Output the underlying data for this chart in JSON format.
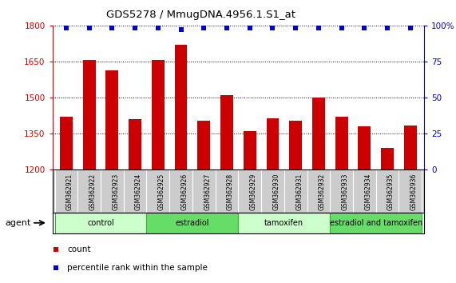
{
  "title": "GDS5278 / MmugDNA.4956.1.S1_at",
  "samples": [
    "GSM362921",
    "GSM362922",
    "GSM362923",
    "GSM362924",
    "GSM362925",
    "GSM362926",
    "GSM362927",
    "GSM362928",
    "GSM362929",
    "GSM362930",
    "GSM362931",
    "GSM362932",
    "GSM362933",
    "GSM362934",
    "GSM362935",
    "GSM362936"
  ],
  "counts": [
    1420,
    1655,
    1615,
    1410,
    1655,
    1720,
    1405,
    1510,
    1360,
    1415,
    1405,
    1500,
    1420,
    1380,
    1290,
    1385
  ],
  "percentile_ranks": [
    98,
    98,
    98,
    98,
    98,
    97,
    98,
    98,
    98,
    98,
    98,
    98,
    98,
    98,
    98,
    98
  ],
  "bar_color": "#cc0000",
  "dot_color": "#0000cc",
  "ylim_left": [
    1200,
    1800
  ],
  "ylim_right": [
    0,
    100
  ],
  "yticks_left": [
    1200,
    1350,
    1500,
    1650,
    1800
  ],
  "yticks_right": [
    0,
    25,
    50,
    75,
    100
  ],
  "groups": [
    {
      "label": "control",
      "start": 0,
      "end": 4
    },
    {
      "label": "estradiol",
      "start": 4,
      "end": 8
    },
    {
      "label": "tamoxifen",
      "start": 8,
      "end": 12
    },
    {
      "label": "estradiol and tamoxifen",
      "start": 12,
      "end": 16
    }
  ],
  "group_colors": [
    "#ccffcc",
    "#66dd66",
    "#ccffcc",
    "#66dd66"
  ],
  "sample_bg": "#cccccc",
  "agent_label": "agent"
}
